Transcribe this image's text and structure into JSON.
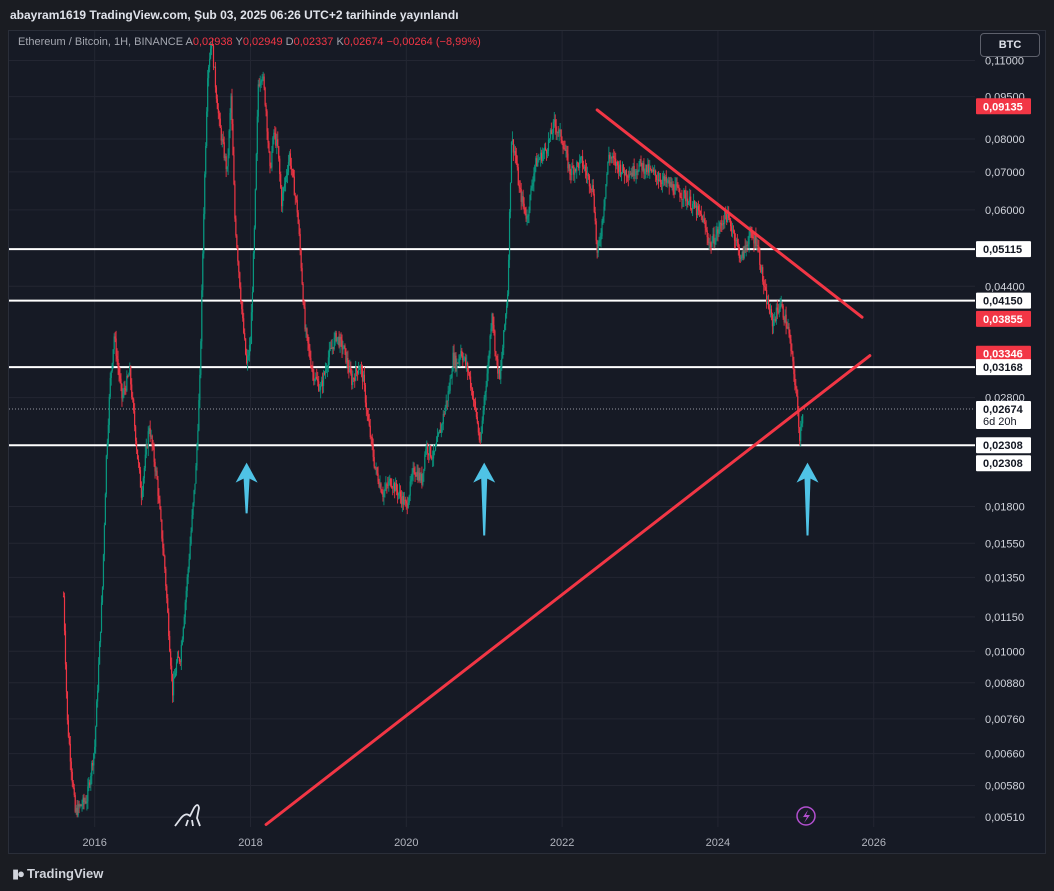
{
  "header": {
    "publisher": "abayram1619 TradingView.com, Şub 03, 2025 06:26 UTC+2 tarihinde yayınlandı"
  },
  "legend": {
    "symbol": "Ethereum / Bitcoin, 1H, BINANCE",
    "open_label": "A",
    "open": "0,02938",
    "high_label": "Y",
    "high": "0,02949",
    "low_label": "D",
    "low": "0,02337",
    "close_label": "K",
    "close": "0,02674",
    "change": "−0,00264 (−8,99%)"
  },
  "currency_button": "BTC",
  "footer": {
    "brand": "TradingView"
  },
  "colors": {
    "background": "#161a25",
    "up": "#089981",
    "down": "#f23645",
    "trendline": "#f23645",
    "arrow": "#4fc3e6",
    "level_line": "#ffffff"
  },
  "chart_data": {
    "type": "candlestick",
    "scale": "log",
    "ylim": [
      0.0049,
      0.124
    ],
    "xlim": [
      2014.9,
      2027.3
    ],
    "x_ticks": [
      "2016",
      "2018",
      "2020",
      "2022",
      "2024",
      "2026"
    ],
    "y_ticks": [
      {
        "v": 0.11,
        "label": "0,11000"
      },
      {
        "v": 0.095,
        "label": "0,09500"
      },
      {
        "v": 0.08,
        "label": "0,08000"
      },
      {
        "v": 0.07,
        "label": "0,07000"
      },
      {
        "v": 0.06,
        "label": "0,06000"
      },
      {
        "v": 0.044,
        "label": "0,04400"
      },
      {
        "v": 0.028,
        "label": "0,02800"
      },
      {
        "v": 0.018,
        "label": "0,01800"
      },
      {
        "v": 0.0155,
        "label": "0,01550"
      },
      {
        "v": 0.0135,
        "label": "0,01350"
      },
      {
        "v": 0.0115,
        "label": "0,01150"
      },
      {
        "v": 0.01,
        "label": "0,01000"
      },
      {
        "v": 0.0088,
        "label": "0,00880"
      },
      {
        "v": 0.0076,
        "label": "0,00760"
      },
      {
        "v": 0.0066,
        "label": "0,00660"
      },
      {
        "v": 0.0058,
        "label": "0,00580"
      },
      {
        "v": 0.0051,
        "label": "0,00510"
      }
    ],
    "price_labels": [
      {
        "v": 0.09135,
        "label": "0,09135",
        "style": "red"
      },
      {
        "v": 0.05115,
        "label": "0,05115",
        "style": "white"
      },
      {
        "v": 0.0415,
        "label": "0,04150",
        "style": "white"
      },
      {
        "v": 0.03855,
        "label": "0,03855",
        "style": "red"
      },
      {
        "v": 0.03346,
        "label": "0,03346",
        "style": "red"
      },
      {
        "v": 0.03168,
        "label": "0,03168",
        "style": "white"
      },
      {
        "v": 0.02674,
        "label": "0,02674",
        "style": "white",
        "sub": "6d 20h"
      },
      {
        "v": 0.02308,
        "label": "0,02308",
        "style": "white"
      },
      {
        "v": 0.02308,
        "label": "0,02308",
        "style": "white",
        "offset": 1
      }
    ],
    "horizontal_levels": [
      0.05115,
      0.0415,
      0.03168,
      0.02308
    ],
    "current_price": 0.02674,
    "price_series": [
      [
        2015.6,
        0.0125
      ],
      [
        2015.65,
        0.0075
      ],
      [
        2015.75,
        0.0052
      ],
      [
        2015.9,
        0.0055
      ],
      [
        2016.0,
        0.0068
      ],
      [
        2016.1,
        0.013
      ],
      [
        2016.15,
        0.022
      ],
      [
        2016.2,
        0.03
      ],
      [
        2016.25,
        0.036
      ],
      [
        2016.35,
        0.028
      ],
      [
        2016.45,
        0.031
      ],
      [
        2016.55,
        0.022
      ],
      [
        2016.6,
        0.019
      ],
      [
        2016.7,
        0.025
      ],
      [
        2016.8,
        0.02
      ],
      [
        2016.9,
        0.014
      ],
      [
        2017.0,
        0.0085
      ],
      [
        2017.05,
        0.0095
      ],
      [
        2017.1,
        0.0098
      ],
      [
        2017.2,
        0.014
      ],
      [
        2017.3,
        0.021
      ],
      [
        2017.35,
        0.03
      ],
      [
        2017.4,
        0.06
      ],
      [
        2017.45,
        0.105
      ],
      [
        2017.5,
        0.12
      ],
      [
        2017.55,
        0.1
      ],
      [
        2017.6,
        0.085
      ],
      [
        2017.7,
        0.07
      ],
      [
        2017.75,
        0.095
      ],
      [
        2017.8,
        0.058
      ],
      [
        2017.9,
        0.038
      ],
      [
        2017.95,
        0.032
      ],
      [
        2018.0,
        0.035
      ],
      [
        2018.05,
        0.055
      ],
      [
        2018.1,
        0.1
      ],
      [
        2018.15,
        0.105
      ],
      [
        2018.2,
        0.09
      ],
      [
        2018.25,
        0.07
      ],
      [
        2018.3,
        0.082
      ],
      [
        2018.35,
        0.077
      ],
      [
        2018.4,
        0.062
      ],
      [
        2018.5,
        0.075
      ],
      [
        2018.6,
        0.06
      ],
      [
        2018.65,
        0.048
      ],
      [
        2018.7,
        0.037
      ],
      [
        2018.8,
        0.031
      ],
      [
        2018.9,
        0.029
      ],
      [
        2019.0,
        0.033
      ],
      [
        2019.1,
        0.036
      ],
      [
        2019.2,
        0.034
      ],
      [
        2019.3,
        0.03
      ],
      [
        2019.4,
        0.032
      ],
      [
        2019.45,
        0.03
      ],
      [
        2019.5,
        0.026
      ],
      [
        2019.6,
        0.021
      ],
      [
        2019.7,
        0.019
      ],
      [
        2019.8,
        0.02
      ],
      [
        2019.9,
        0.019
      ],
      [
        2020.0,
        0.018
      ],
      [
        2020.1,
        0.021
      ],
      [
        2020.2,
        0.02
      ],
      [
        2020.25,
        0.023
      ],
      [
        2020.35,
        0.022
      ],
      [
        2020.45,
        0.025
      ],
      [
        2020.55,
        0.029
      ],
      [
        2020.6,
        0.033
      ],
      [
        2020.65,
        0.032
      ],
      [
        2020.7,
        0.034
      ],
      [
        2020.8,
        0.031
      ],
      [
        2020.9,
        0.026
      ],
      [
        2020.95,
        0.023
      ],
      [
        2021.0,
        0.028
      ],
      [
        2021.05,
        0.032
      ],
      [
        2021.1,
        0.04
      ],
      [
        2021.15,
        0.033
      ],
      [
        2021.2,
        0.03
      ],
      [
        2021.3,
        0.043
      ],
      [
        2021.35,
        0.08
      ],
      [
        2021.4,
        0.075
      ],
      [
        2021.45,
        0.065
      ],
      [
        2021.55,
        0.058
      ],
      [
        2021.65,
        0.072
      ],
      [
        2021.8,
        0.077
      ],
      [
        2021.9,
        0.085
      ],
      [
        2022.0,
        0.08
      ],
      [
        2022.1,
        0.07
      ],
      [
        2022.25,
        0.073
      ],
      [
        2022.4,
        0.065
      ],
      [
        2022.45,
        0.05
      ],
      [
        2022.5,
        0.055
      ],
      [
        2022.6,
        0.075
      ],
      [
        2022.7,
        0.072
      ],
      [
        2022.8,
        0.07
      ],
      [
        2022.9,
        0.07
      ],
      [
        2023.0,
        0.072
      ],
      [
        2023.2,
        0.069
      ],
      [
        2023.4,
        0.066
      ],
      [
        2023.6,
        0.063
      ],
      [
        2023.8,
        0.058
      ],
      [
        2023.9,
        0.052
      ],
      [
        2024.0,
        0.055
      ],
      [
        2024.1,
        0.059
      ],
      [
        2024.2,
        0.055
      ],
      [
        2024.3,
        0.049
      ],
      [
        2024.4,
        0.054
      ],
      [
        2024.5,
        0.053
      ],
      [
        2024.6,
        0.043
      ],
      [
        2024.7,
        0.038
      ],
      [
        2024.8,
        0.041
      ],
      [
        2024.9,
        0.037
      ],
      [
        2024.95,
        0.033
      ],
      [
        2025.0,
        0.029
      ],
      [
        2025.05,
        0.024
      ],
      [
        2025.09,
        0.0267
      ]
    ],
    "trendlines": [
      {
        "from": [
          2022.45,
          0.09
        ],
        "to": [
          2025.85,
          0.0388
        ]
      },
      {
        "from": [
          2018.2,
          0.00495
        ],
        "to": [
          2025.95,
          0.0332
        ]
      }
    ],
    "arrows": [
      {
        "x": 2017.95,
        "tip": 0.0215,
        "tail": 0.0175
      },
      {
        "x": 2021.0,
        "tip": 0.0215,
        "tail": 0.016
      },
      {
        "x": 2025.15,
        "tip": 0.0215,
        "tail": 0.016
      }
    ]
  }
}
